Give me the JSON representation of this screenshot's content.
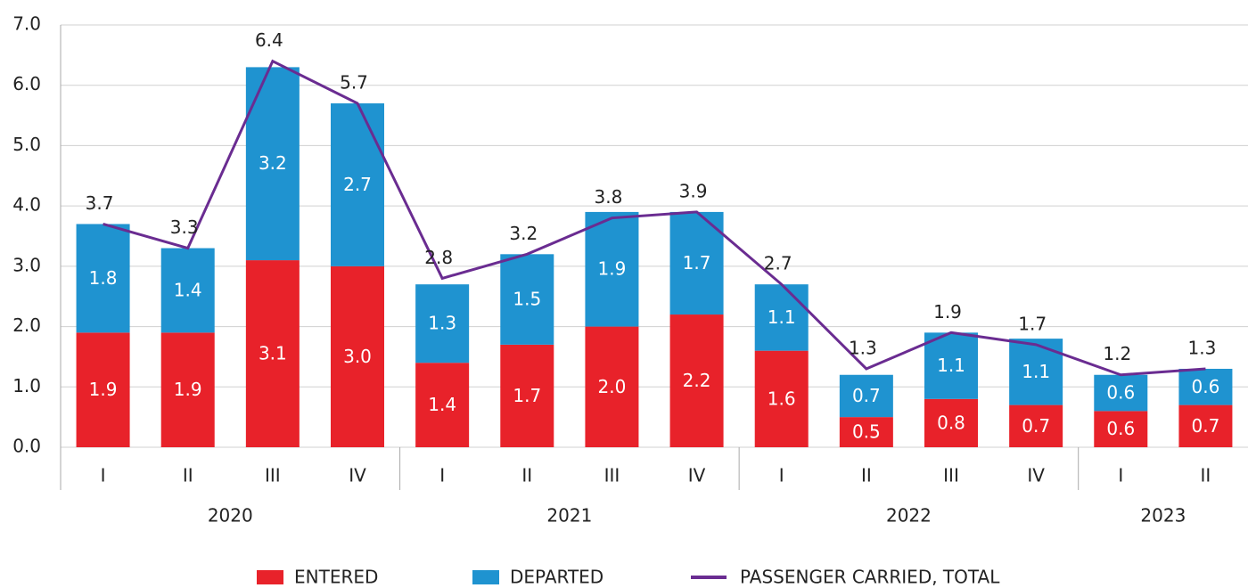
{
  "chart_data": {
    "type": "bar",
    "groups": [
      {
        "name": "2020",
        "categories": [
          "I",
          "II",
          "III",
          "IV"
        ]
      },
      {
        "name": "2021",
        "categories": [
          "I",
          "II",
          "III",
          "IV"
        ]
      },
      {
        "name": "2022",
        "categories": [
          "I",
          "II",
          "III",
          "IV"
        ]
      },
      {
        "name": "2023",
        "categories": [
          "I",
          "II"
        ]
      }
    ],
    "series": [
      {
        "name": "ENTERED",
        "color": "#e8222a",
        "stack": true,
        "values": [
          1.9,
          1.9,
          3.1,
          3.0,
          1.4,
          1.7,
          2.0,
          2.2,
          1.6,
          0.5,
          0.8,
          0.7,
          0.6,
          0.7
        ],
        "value_labels": [
          "1.9",
          "1.9",
          "3.1",
          "3.0",
          "1.4",
          "1.7",
          "2.0",
          "2.2",
          "1.6",
          "0.5",
          "0.8",
          "0.7",
          "0.6",
          "0.7"
        ]
      },
      {
        "name": "DEPARTED",
        "color": "#1f93d0",
        "stack": true,
        "values": [
          1.8,
          1.4,
          3.2,
          2.7,
          1.3,
          1.5,
          1.9,
          1.7,
          1.1,
          0.7,
          1.1,
          1.1,
          0.6,
          0.6
        ],
        "value_labels": [
          "1.8",
          "1.4",
          "3.2",
          "2.7",
          "1.3",
          "1.5",
          "1.9",
          "1.7",
          "1.1",
          "0.7",
          "1.1",
          "1.1",
          "0.6",
          "0.6"
        ]
      },
      {
        "name": "PASSENGER CARRIED, TOTAL",
        "color": "#6a2c91",
        "type": "line",
        "values": [
          3.7,
          3.3,
          6.4,
          5.7,
          2.8,
          3.2,
          3.8,
          3.9,
          2.7,
          1.3,
          1.9,
          1.7,
          1.2,
          1.3
        ]
      }
    ],
    "ylim": [
      0,
      7
    ],
    "yticks": [
      {
        "value": 0,
        "label": "0.0"
      },
      {
        "value": 1,
        "label": "1.0"
      },
      {
        "value": 2,
        "label": "2.0"
      },
      {
        "value": 3,
        "label": "3.0"
      },
      {
        "value": 4,
        "label": "4.0"
      },
      {
        "value": 5,
        "label": "5.0"
      },
      {
        "value": 6,
        "label": "6.0"
      },
      {
        "value": 7,
        "label": "7.0"
      }
    ],
    "grid": true
  }
}
